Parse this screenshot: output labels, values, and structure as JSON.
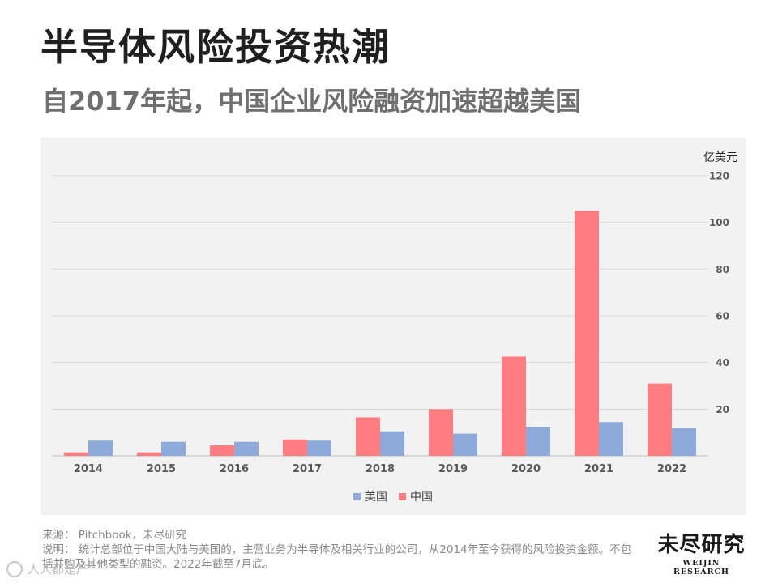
{
  "header": {
    "title": "半导体风险投资热潮",
    "subtitle": "自2017年起，中国企业风险融资加速超越美国"
  },
  "chart_data": {
    "type": "bar",
    "categories": [
      "2014",
      "2015",
      "2016",
      "2017",
      "2018",
      "2019",
      "2020",
      "2021",
      "2022"
    ],
    "series": [
      {
        "name": "中国",
        "color": "#ff7c80",
        "values": [
          1.5,
          1.5,
          4.5,
          7,
          16.5,
          20,
          42.5,
          105,
          31
        ]
      },
      {
        "name": "美国",
        "color": "#8eaadb",
        "values": [
          6.5,
          6,
          6,
          6.5,
          10.5,
          9.5,
          12.5,
          14.5,
          12
        ]
      }
    ],
    "unit": "亿美元",
    "ylim": [
      0,
      120
    ],
    "y_ticks": [
      "20",
      "40",
      "60",
      "80",
      "100",
      "120"
    ],
    "grid": true,
    "y_axis_side": "right",
    "legend": {
      "position": "bottom",
      "items": [
        {
          "name": "美国",
          "color": "#8eaadb"
        },
        {
          "name": "中国",
          "color": "#ff7c80"
        }
      ]
    }
  },
  "footer": {
    "source": "来源：  Pitchbook，未尽研究",
    "note": "说明：  统计总部位于中国大陆与美国的，主营业务为半导体及相关行业的公司，从2014年至今获得的风险投资金额。不包括并购及其他类型的融资。2022年截至7月底。"
  },
  "logo": {
    "name_cn": "未尽研究",
    "name_en": "WEIJIN RESEARCH"
  },
  "watermark": {
    "text": "人人都是产"
  }
}
